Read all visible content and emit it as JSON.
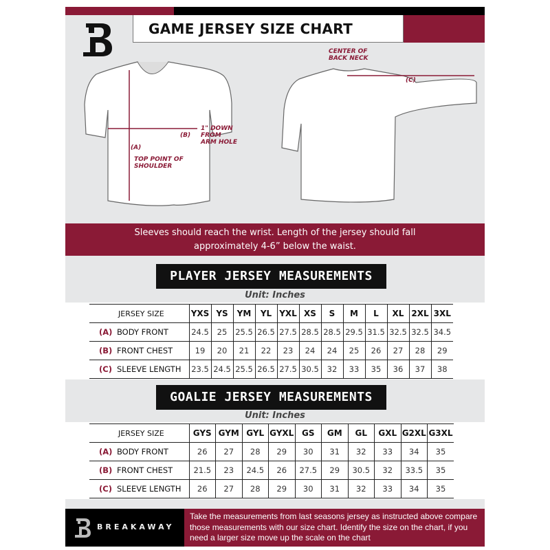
{
  "header": {
    "title": "GAME JERSEY SIZE CHART",
    "logo": "B"
  },
  "diagram": {
    "label_a": "(A)",
    "label_b": "(B)",
    "label_c": "(C)",
    "top_point": "TOP POINT OF SHOULDER",
    "arm_hole": "1\" DOWN FROM ARM HOLE",
    "back_neck": "CENTER OF BACK NECK"
  },
  "banner": "Sleeves should reach the wrist. Length of the jersey should fall approximately 4-6” below the waist.",
  "player": {
    "title": "PLAYER JERSEY MEASUREMENTS",
    "unit": "Unit: Inches",
    "header_label": "JERSEY SIZE",
    "sizes": [
      "YXS",
      "YS",
      "YM",
      "YL",
      "YXL",
      "XS",
      "S",
      "M",
      "L",
      "XL",
      "2XL",
      "3XL"
    ],
    "rows": [
      {
        "letter": "(A)",
        "label": "BODY FRONT",
        "values": [
          "24.5",
          "25",
          "25.5",
          "26.5",
          "27.5",
          "28.5",
          "28.5",
          "29.5",
          "31.5",
          "32.5",
          "32.5",
          "34.5"
        ]
      },
      {
        "letter": "(B)",
        "label": "FRONT CHEST",
        "values": [
          "19",
          "20",
          "21",
          "22",
          "23",
          "24",
          "24",
          "25",
          "26",
          "27",
          "28",
          "29"
        ]
      },
      {
        "letter": "(C)",
        "label": "SLEEVE LENGTH",
        "values": [
          "23.5",
          "24.5",
          "25.5",
          "26.5",
          "27.5",
          "30.5",
          "32",
          "33",
          "35",
          "36",
          "37",
          "38"
        ]
      }
    ]
  },
  "goalie": {
    "title": "GOALIE JERSEY MEASUREMENTS",
    "unit": "Unit: Inches",
    "header_label": "JERSEY SIZE",
    "sizes": [
      "GYS",
      "GYM",
      "GYL",
      "GYXL",
      "GS",
      "GM",
      "GL",
      "GXL",
      "G2XL",
      "G3XL"
    ],
    "rows": [
      {
        "letter": "(A)",
        "label": "BODY FRONT",
        "values": [
          "26",
          "27",
          "28",
          "29",
          "30",
          "31",
          "32",
          "33",
          "34",
          "35"
        ]
      },
      {
        "letter": "(B)",
        "label": "FRONT CHEST",
        "values": [
          "21.5",
          "23",
          "24.5",
          "26",
          "27.5",
          "29",
          "30.5",
          "32",
          "33.5",
          "35"
        ]
      },
      {
        "letter": "(C)",
        "label": "SLEEVE LENGTH",
        "values": [
          "26",
          "27",
          "28",
          "29",
          "30",
          "31",
          "32",
          "33",
          "34",
          "35"
        ]
      }
    ]
  },
  "footer": {
    "brand": "BREAKAWAY",
    "text": "Take the measurements from last seasons jersey as instructed above compare those measurements  with our size chart. Identify the size on the chart, if you need a larger size move up the scale on the chart"
  },
  "colors": {
    "accent": "#8a1a36",
    "background": "#e6e7e8",
    "dark": "#111111"
  }
}
